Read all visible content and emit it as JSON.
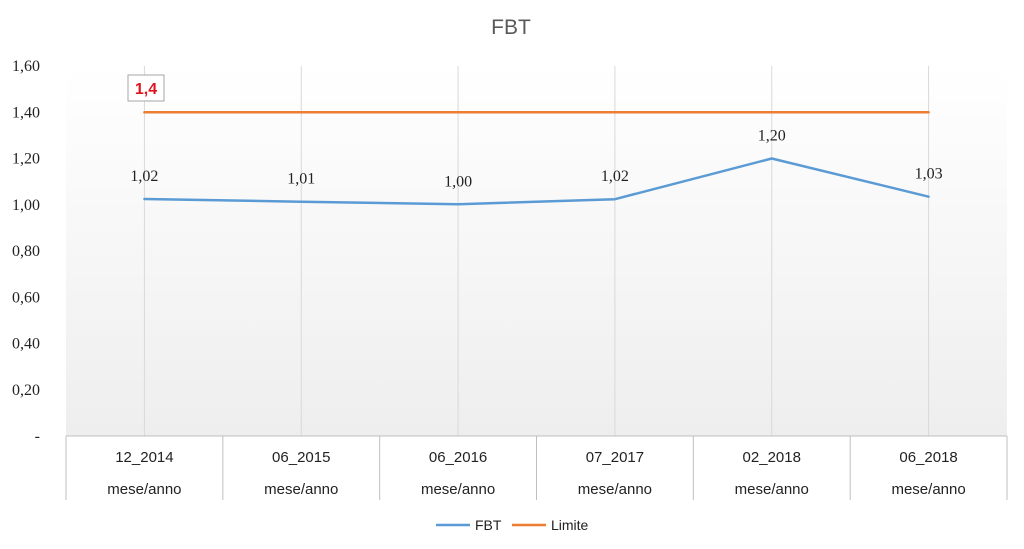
{
  "chart_data": {
    "type": "line",
    "title": "FBT",
    "categories": [
      "12_2014",
      "06_2015",
      "06_2016",
      "07_2017",
      "02_2018",
      "06_2018"
    ],
    "category_sublabel": "mese/anno",
    "ylim": [
      0,
      1.6
    ],
    "ytick_labels": [
      "-",
      "0,20",
      "0,40",
      "0,60",
      "0,80",
      "1,00",
      "1,20",
      "1,40",
      "1,60"
    ],
    "series": [
      {
        "name": "FBT",
        "color": "#5b9bd5",
        "values": [
          1.025,
          1.013,
          1.002,
          1.024,
          1.2,
          1.035
        ],
        "data_labels": [
          "1,02",
          "1,01",
          "1,00",
          "1,02",
          "1,20",
          "1,03"
        ]
      },
      {
        "name": "Limite",
        "color": "#ed7d31",
        "values": [
          1.4,
          1.4,
          1.4,
          1.4,
          1.4,
          1.4
        ]
      }
    ],
    "annotation": {
      "text": "1,4",
      "color": "#e0141e"
    },
    "grid": "vertical",
    "legend": "bottom-center"
  }
}
